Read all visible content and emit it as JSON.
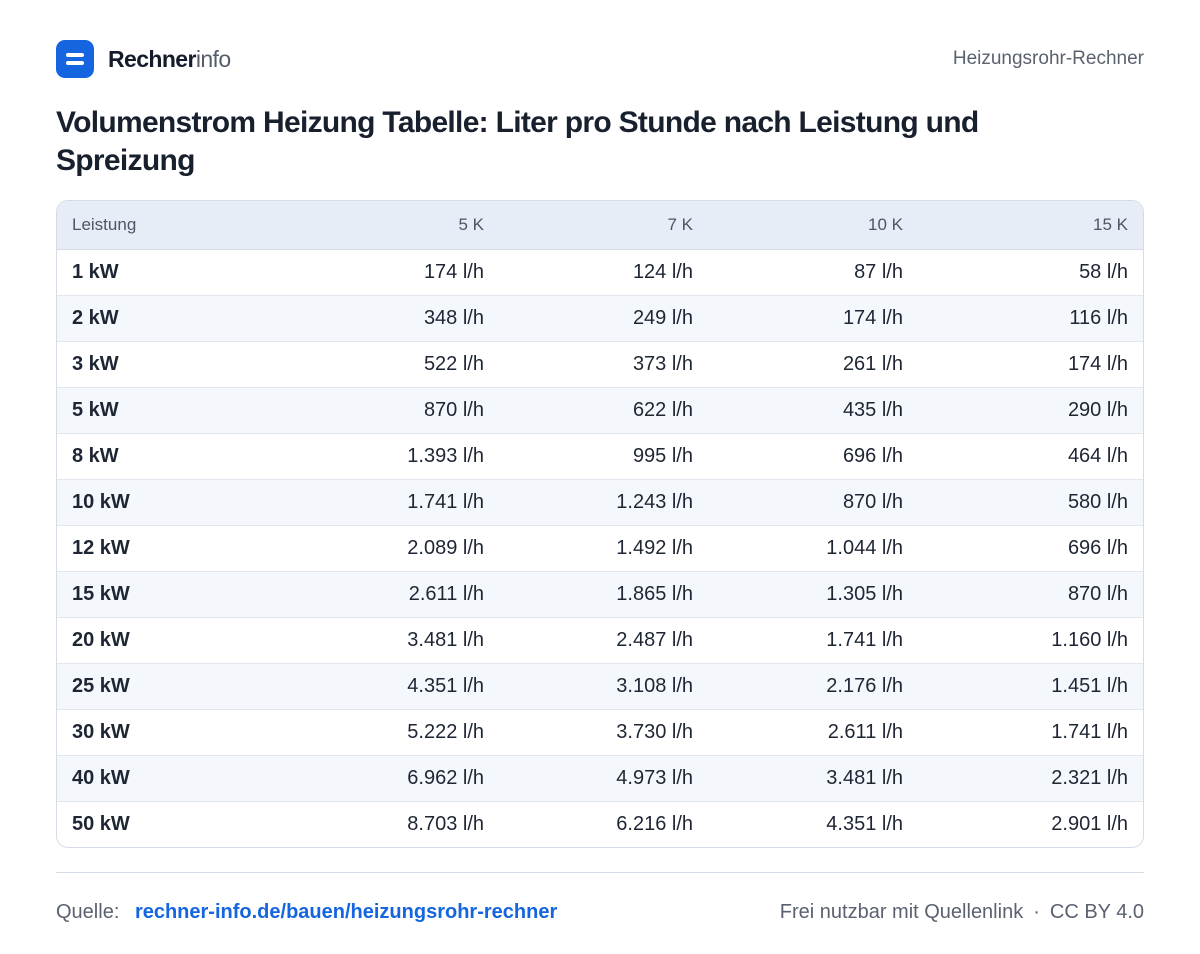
{
  "header": {
    "brand_bold": "Rechner",
    "brand_light": "info",
    "page_label": "Heizungsrohr-Rechner"
  },
  "title": "Volumenstrom Heizung Tabelle: Liter pro Stunde nach Leistung und Spreizung",
  "table": {
    "columns": [
      "Leistung",
      "5 K",
      "7 K",
      "10 K",
      "15 K"
    ],
    "rows": [
      [
        "1 kW",
        "174 l/h",
        "124 l/h",
        "87 l/h",
        "58 l/h"
      ],
      [
        "2 kW",
        "348 l/h",
        "249 l/h",
        "174 l/h",
        "116 l/h"
      ],
      [
        "3 kW",
        "522 l/h",
        "373 l/h",
        "261 l/h",
        "174 l/h"
      ],
      [
        "5 kW",
        "870 l/h",
        "622 l/h",
        "435 l/h",
        "290 l/h"
      ],
      [
        "8 kW",
        "1.393 l/h",
        "995 l/h",
        "696 l/h",
        "464 l/h"
      ],
      [
        "10 kW",
        "1.741 l/h",
        "1.243 l/h",
        "870 l/h",
        "580 l/h"
      ],
      [
        "12 kW",
        "2.089 l/h",
        "1.492 l/h",
        "1.044 l/h",
        "696 l/h"
      ],
      [
        "15 kW",
        "2.611 l/h",
        "1.865 l/h",
        "1.305 l/h",
        "870 l/h"
      ],
      [
        "20 kW",
        "3.481 l/h",
        "2.487 l/h",
        "1.741 l/h",
        "1.160 l/h"
      ],
      [
        "25 kW",
        "4.351 l/h",
        "3.108 l/h",
        "2.176 l/h",
        "1.451 l/h"
      ],
      [
        "30 kW",
        "5.222 l/h",
        "3.730 l/h",
        "2.611 l/h",
        "1.741 l/h"
      ],
      [
        "40 kW",
        "6.962 l/h",
        "4.973 l/h",
        "3.481 l/h",
        "2.321 l/h"
      ],
      [
        "50 kW",
        "8.703 l/h",
        "6.216 l/h",
        "4.351 l/h",
        "2.901 l/h"
      ]
    ]
  },
  "footer": {
    "source_label": "Quelle:",
    "source_link": "rechner-info.de/bauen/heizungsrohr-rechner",
    "license_text": "Frei nutzbar mit Quellenlink",
    "separator": "·",
    "license_name": "CC BY 4.0"
  },
  "colors": {
    "accent": "#1565e0",
    "header_row": "#e7edf6",
    "stripe_row": "#f4f7fb",
    "text": "#1e2634"
  }
}
